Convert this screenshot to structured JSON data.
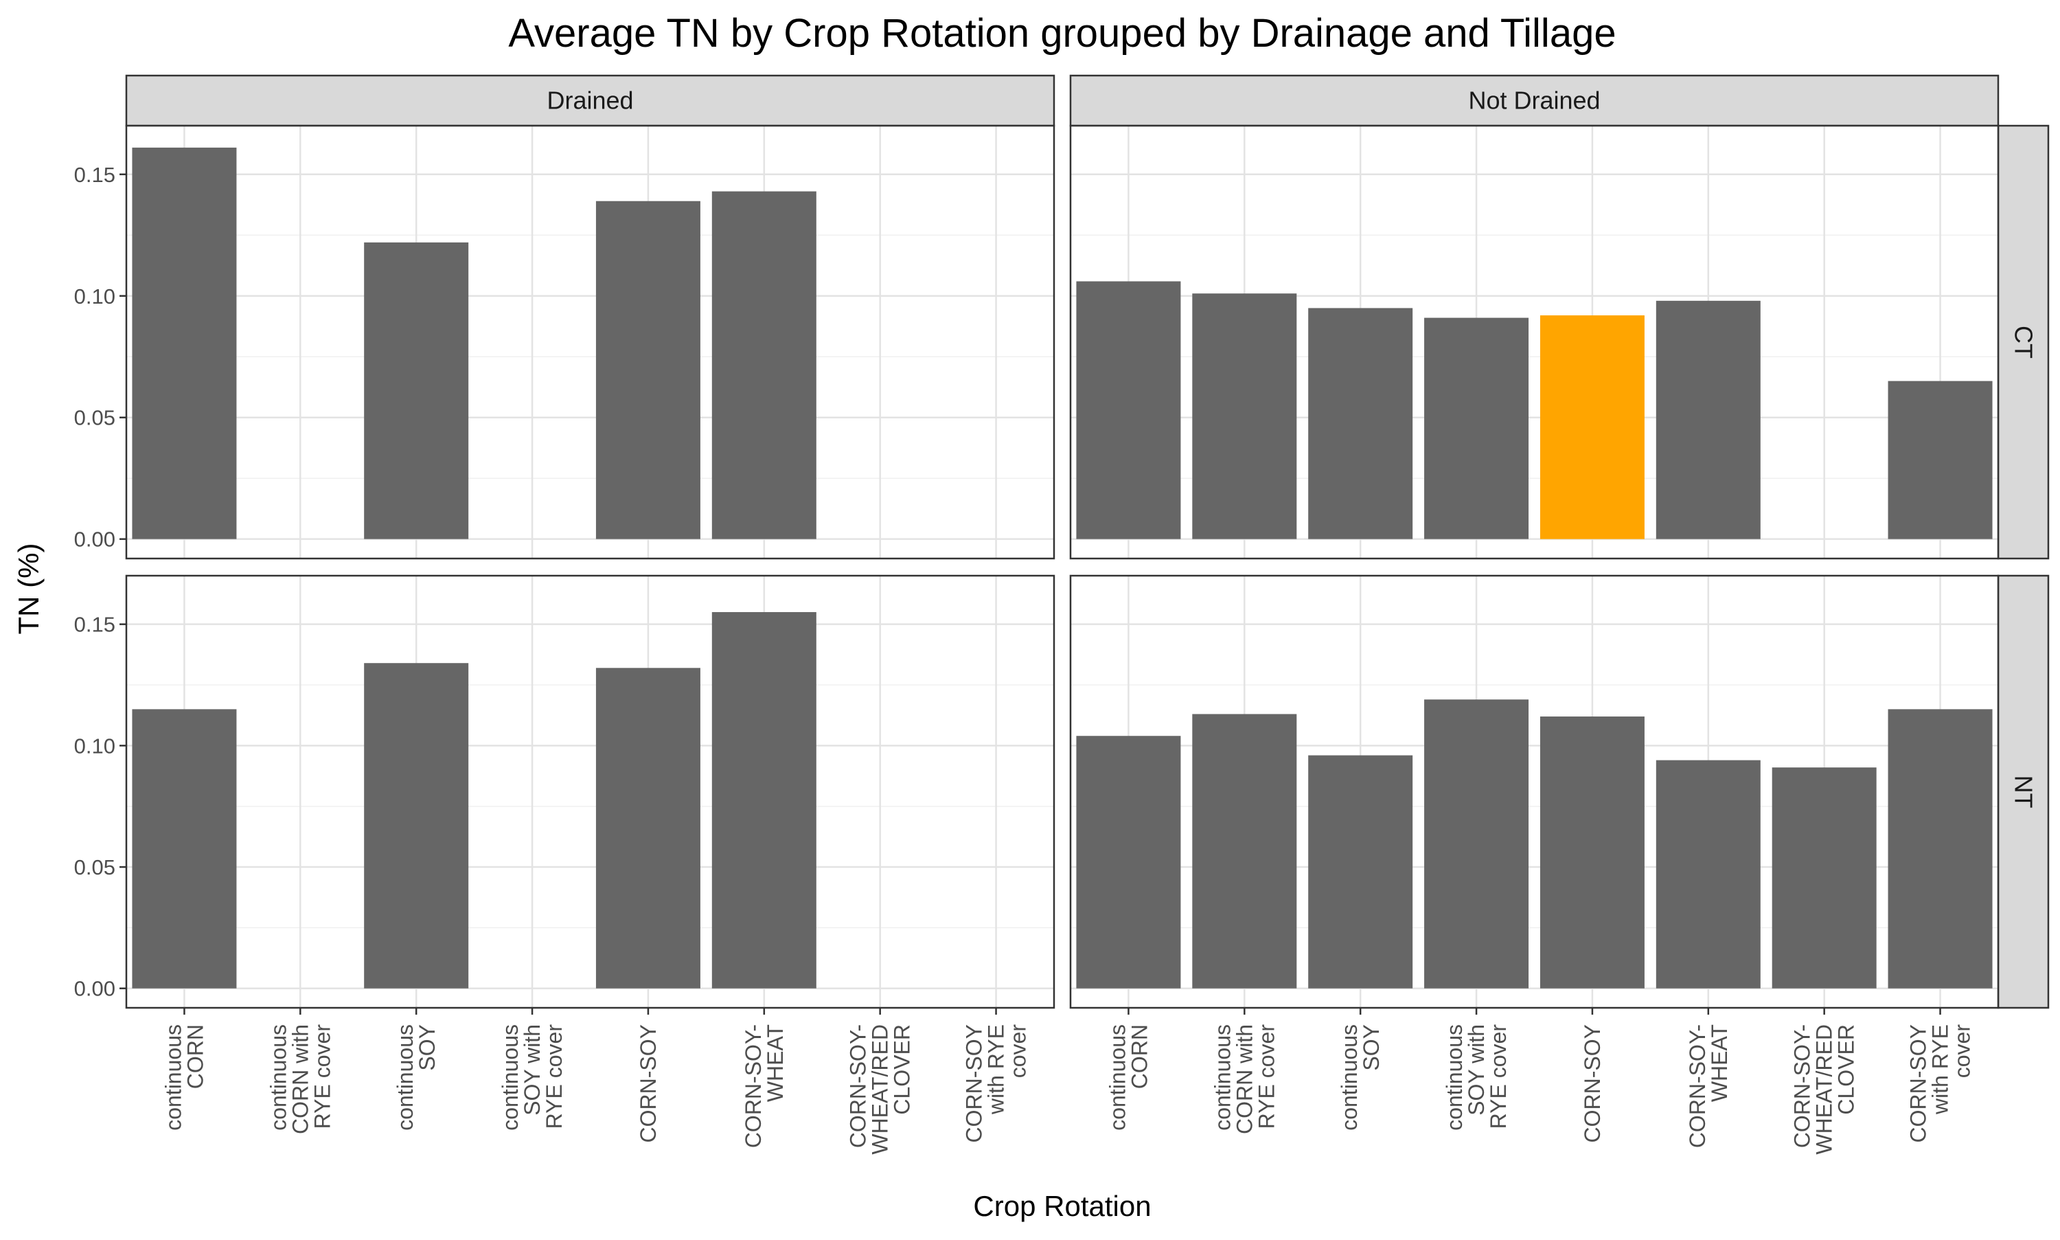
{
  "chart_data": {
    "type": "bar",
    "title": "Average TN by Crop Rotation grouped by Drainage and Tillage",
    "xlabel": "Crop Rotation",
    "ylabel": "TN (%)",
    "ylim": [
      -0.008,
      0.17
    ],
    "yticks": [
      "0.00",
      "0.05",
      "0.10",
      "0.15"
    ],
    "ytick_values": [
      0,
      0.05,
      0.1,
      0.15
    ],
    "grid": true,
    "facet_columns": [
      "Drained",
      "Not Drained"
    ],
    "facet_rows": [
      "CT",
      "NT"
    ],
    "categories": [
      "continuous CORN",
      "continuous CORN with RYE cover",
      "continuous SOY",
      "continuous SOY with RYE cover",
      "CORN-SOY",
      "CORN-SOY-WHEAT",
      "CORN-SOY-WHEAT/RED CLOVER",
      "CORN-SOY with RYE cover"
    ],
    "category_label_lines": [
      [
        "continuous",
        "CORN"
      ],
      [
        "continuous",
        "CORN with",
        "RYE cover"
      ],
      [
        "continuous",
        "SOY"
      ],
      [
        "continuous",
        "SOY with",
        "RYE cover"
      ],
      [
        "CORN-SOY"
      ],
      [
        "CORN-SOY-",
        "WHEAT"
      ],
      [
        "CORN-SOY-",
        "WHEAT/RED",
        "CLOVER"
      ],
      [
        "CORN-SOY",
        "with RYE",
        "cover"
      ]
    ],
    "bar_color": "#666666",
    "highlight_color": "#FFA500",
    "panels": [
      {
        "col": "Drained",
        "row": "CT",
        "values": [
          0.161,
          null,
          0.122,
          null,
          0.139,
          0.143,
          null,
          null
        ],
        "highlight": []
      },
      {
        "col": "Not Drained",
        "row": "CT",
        "values": [
          0.106,
          0.101,
          0.095,
          0.091,
          0.092,
          0.098,
          null,
          0.065
        ],
        "highlight": [
          4
        ]
      },
      {
        "col": "Drained",
        "row": "NT",
        "values": [
          0.115,
          null,
          0.134,
          null,
          0.132,
          0.155,
          null,
          null
        ],
        "highlight": []
      },
      {
        "col": "Not Drained",
        "row": "NT",
        "values": [
          0.104,
          0.113,
          0.096,
          0.119,
          0.112,
          0.094,
          0.091,
          0.115
        ],
        "highlight": []
      }
    ]
  }
}
